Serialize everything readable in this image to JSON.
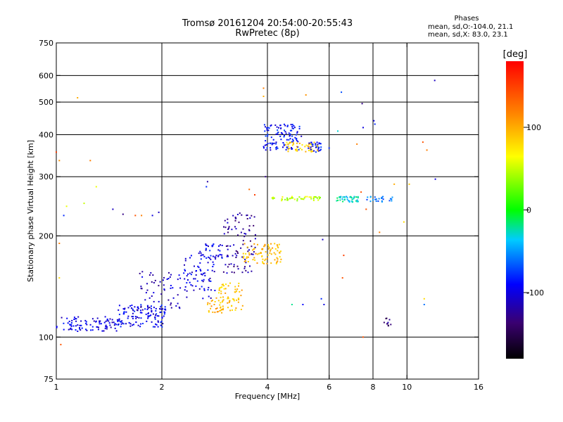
{
  "header": {
    "title_line1": "Tromsø 20161204 20:54:00-20:55:43",
    "title_line2": "RwPretec (8p)"
  },
  "stats": {
    "heading": "Phases",
    "o_line": "mean, sd,O:-104.0, 21.1",
    "x_line": "mean, sd,X:  83.0, 23.1"
  },
  "colorbar": {
    "label": "[deg]",
    "ticks": [
      "100",
      "0",
      "-100"
    ],
    "tick_values": [
      100,
      0,
      -100
    ],
    "range": [
      -180,
      180
    ]
  },
  "chart_data": {
    "type": "scatter",
    "xlabel": "Frequency [MHz]",
    "ylabel": "Stationary phase Virtual Height [km]",
    "xscale": "log2",
    "yscale": "log",
    "xlim": [
      1,
      16
    ],
    "ylim": [
      75,
      750
    ],
    "xticks": [
      {
        "v": 1,
        "label": "1"
      },
      {
        "v": 2,
        "label": "2"
      },
      {
        "v": 4,
        "label": "4"
      },
      {
        "v": 6,
        "label": "6"
      },
      {
        "v": 8,
        "label": "8"
      },
      {
        "v": 10,
        "label": "10"
      },
      {
        "v": 16,
        "label": "16"
      }
    ],
    "yticks": [
      {
        "v": 75,
        "label": "75"
      },
      {
        "v": 100,
        "label": "100"
      },
      {
        "v": 200,
        "label": "200"
      },
      {
        "v": 300,
        "label": "300"
      },
      {
        "v": 400,
        "label": "400"
      },
      {
        "v": 500,
        "label": "500"
      },
      {
        "v": 600,
        "label": "600"
      },
      {
        "v": 750,
        "label": "750"
      }
    ],
    "x_gridlines": [
      2,
      4,
      6,
      8,
      10
    ],
    "y_gridlines": [
      100,
      200,
      300,
      400,
      500,
      600
    ],
    "grid": true,
    "clusters": [
      {
        "f": [
          1.0,
          1.5
        ],
        "h": [
          104,
          115
        ],
        "phase": -100,
        "n": 90
      },
      {
        "f": [
          1.5,
          2.05
        ],
        "h": [
          107,
          125
        ],
        "phase": -95,
        "n": 120
      },
      {
        "f": [
          1.7,
          2.3
        ],
        "h": [
          120,
          160
        ],
        "phase": -110,
        "n": 60
      },
      {
        "f": [
          2.3,
          2.85
        ],
        "h": [
          130,
          175
        ],
        "phase": -100,
        "n": 70
      },
      {
        "f": [
          2.55,
          3.0
        ],
        "h": [
          165,
          190
        ],
        "phase": -95,
        "n": 40
      },
      {
        "f": [
          2.7,
          3.0
        ],
        "h": [
          118,
          132
        ],
        "phase": 95,
        "n": 30
      },
      {
        "f": [
          2.9,
          3.4
        ],
        "h": [
          120,
          145
        ],
        "phase": 90,
        "n": 60
      },
      {
        "f": [
          3.0,
          3.7
        ],
        "h": [
          155,
          235
        ],
        "phase": -120,
        "n": 90
      },
      {
        "f": [
          3.4,
          4.4
        ],
        "h": [
          165,
          190
        ],
        "phase": 95,
        "n": 80
      },
      {
        "f": [
          3.9,
          5.0
        ],
        "h": [
          360,
          430
        ],
        "phase": -90,
        "n": 110
      },
      {
        "f": [
          4.5,
          5.6
        ],
        "h": [
          355,
          380
        ],
        "phase": 85,
        "n": 50
      },
      {
        "f": [
          5.2,
          5.7
        ],
        "h": [
          355,
          380
        ],
        "phase": -90,
        "n": 30
      },
      {
        "f": [
          4.0,
          5.7
        ],
        "h": [
          254,
          262
        ],
        "phase": 50,
        "n": 45
      },
      {
        "f": [
          6.3,
          7.3
        ],
        "h": [
          252,
          262
        ],
        "phase": -30,
        "n": 40
      },
      {
        "f": [
          7.5,
          9.1
        ],
        "h": [
          252,
          262
        ],
        "phase": -60,
        "n": 25
      },
      {
        "f": [
          8.6,
          9.0
        ],
        "h": [
          108,
          114
        ],
        "phase": -130,
        "n": 10
      }
    ],
    "points": [
      {
        "f": 1.0,
        "h": 355,
        "p": 150
      },
      {
        "f": 1.02,
        "h": 335,
        "p": 110
      },
      {
        "f": 1.02,
        "h": 190,
        "p": 120
      },
      {
        "f": 1.02,
        "h": 150,
        "p": 80
      },
      {
        "f": 1.03,
        "h": 95,
        "p": 140
      },
      {
        "f": 1.05,
        "h": 230,
        "p": -80
      },
      {
        "f": 1.07,
        "h": 245,
        "p": 60
      },
      {
        "f": 1.15,
        "h": 515,
        "p": 100
      },
      {
        "f": 1.2,
        "h": 250,
        "p": 50
      },
      {
        "f": 1.25,
        "h": 335,
        "p": 120
      },
      {
        "f": 1.3,
        "h": 280,
        "p": 60
      },
      {
        "f": 1.45,
        "h": 240,
        "p": -110
      },
      {
        "f": 1.55,
        "h": 232,
        "p": -130
      },
      {
        "f": 1.68,
        "h": 230,
        "p": 140
      },
      {
        "f": 1.75,
        "h": 230,
        "p": 120
      },
      {
        "f": 1.88,
        "h": 230,
        "p": -100
      },
      {
        "f": 1.96,
        "h": 235,
        "p": -110
      },
      {
        "f": 2.7,
        "h": 290,
        "p": -120
      },
      {
        "f": 2.68,
        "h": 280,
        "p": -80
      },
      {
        "f": 3.55,
        "h": 275,
        "p": 130
      },
      {
        "f": 3.68,
        "h": 265,
        "p": 150
      },
      {
        "f": 3.9,
        "h": 550,
        "p": 120
      },
      {
        "f": 3.9,
        "h": 520,
        "p": 100
      },
      {
        "f": 3.95,
        "h": 300,
        "p": -130
      },
      {
        "f": 5.15,
        "h": 525,
        "p": 110
      },
      {
        "f": 5.75,
        "h": 195,
        "p": -110
      },
      {
        "f": 5.7,
        "h": 130,
        "p": -80
      },
      {
        "f": 5.8,
        "h": 125,
        "p": -100
      },
      {
        "f": 5.05,
        "h": 125,
        "p": -90
      },
      {
        "f": 4.7,
        "h": 125,
        "p": -20
      },
      {
        "f": 6.0,
        "h": 365,
        "p": -80
      },
      {
        "f": 6.35,
        "h": 410,
        "p": -30
      },
      {
        "f": 6.5,
        "h": 535,
        "p": -70
      },
      {
        "f": 6.6,
        "h": 175,
        "p": 150
      },
      {
        "f": 6.55,
        "h": 150,
        "p": 140
      },
      {
        "f": 7.45,
        "h": 495,
        "p": -130
      },
      {
        "f": 7.5,
        "h": 420,
        "p": -100
      },
      {
        "f": 7.2,
        "h": 375,
        "p": 120
      },
      {
        "f": 7.4,
        "h": 270,
        "p": 140
      },
      {
        "f": 7.65,
        "h": 240,
        "p": 140
      },
      {
        "f": 7.5,
        "h": 100,
        "p": 140
      },
      {
        "f": 8.05,
        "h": 440,
        "p": -100
      },
      {
        "f": 8.1,
        "h": 430,
        "p": -80
      },
      {
        "f": 8.35,
        "h": 205,
        "p": 120
      },
      {
        "f": 9.2,
        "h": 285,
        "p": 100
      },
      {
        "f": 9.8,
        "h": 220,
        "p": 80
      },
      {
        "f": 10.15,
        "h": 285,
        "p": 90
      },
      {
        "f": 11.1,
        "h": 380,
        "p": 140
      },
      {
        "f": 11.2,
        "h": 130,
        "p": 80
      },
      {
        "f": 11.2,
        "h": 125,
        "p": -60
      },
      {
        "f": 12.0,
        "h": 580,
        "p": -110
      },
      {
        "f": 12.05,
        "h": 295,
        "p": -100
      },
      {
        "f": 11.4,
        "h": 360,
        "p": 120
      }
    ]
  }
}
